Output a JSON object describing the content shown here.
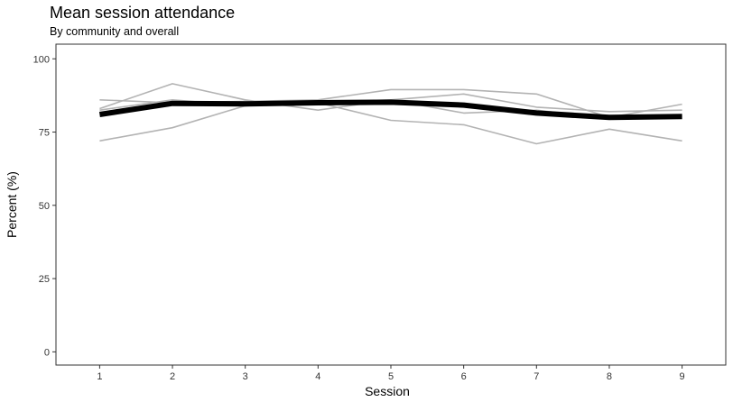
{
  "chart_data": {
    "type": "line",
    "title": "Mean session attendance",
    "subtitle": "By community and overall",
    "xlabel": "Session",
    "ylabel": "Percent (%)",
    "x": [
      1,
      2,
      3,
      4,
      5,
      6,
      7,
      8,
      9
    ],
    "xlim": [
      0.4,
      9.6
    ],
    "ylim": [
      -4.5,
      105
    ],
    "yticks": [
      0,
      25,
      50,
      75,
      100
    ],
    "xticks": [
      1,
      2,
      3,
      4,
      5,
      6,
      7,
      8,
      9
    ],
    "grid": false,
    "legend": "none",
    "series": [
      {
        "role": "community",
        "color": "#b3b3b3",
        "values": [
          86.0,
          85.0,
          85.5,
          86.0,
          89.5,
          89.5,
          88.0,
          80.0,
          84.5
        ]
      },
      {
        "role": "community",
        "color": "#b3b3b3",
        "values": [
          83.0,
          91.5,
          86.0,
          82.5,
          86.0,
          88.0,
          83.5,
          82.0,
          82.5
        ]
      },
      {
        "role": "community",
        "color": "#b3b3b3",
        "values": [
          72.0,
          76.5,
          84.0,
          85.0,
          79.0,
          77.5,
          71.0,
          76.0,
          72.0
        ]
      },
      {
        "role": "community",
        "color": "#b3b3b3",
        "values": [
          82.5,
          86.0,
          84.0,
          85.0,
          86.0,
          81.5,
          82.5,
          79.5,
          80.5
        ]
      },
      {
        "role": "overall",
        "color": "#000000",
        "values": [
          81.0,
          84.8,
          84.6,
          85.0,
          85.2,
          84.2,
          81.5,
          80.0,
          80.3
        ]
      }
    ]
  }
}
